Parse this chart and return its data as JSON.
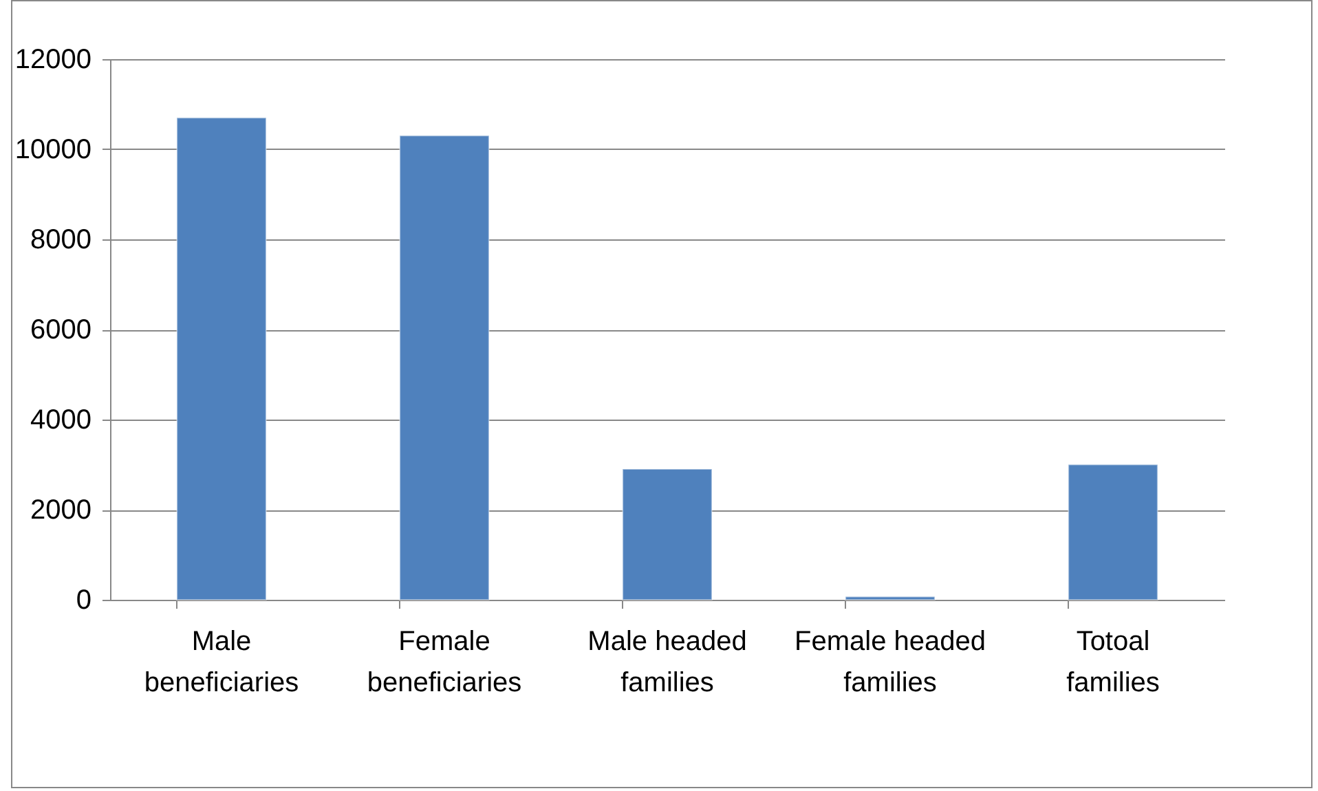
{
  "chart_data": {
    "type": "bar",
    "categories": [
      "Male beneficiaries",
      "Female beneficiaries",
      "Male headed families",
      "Female headed families",
      "Totoal families"
    ],
    "values": [
      10700,
      10300,
      2900,
      70,
      3000
    ],
    "color": "#4f81bd",
    "ylim": [
      0,
      12000
    ],
    "yticks": [
      0,
      2000,
      4000,
      6000,
      8000,
      10000,
      12000
    ],
    "grid": "y"
  }
}
